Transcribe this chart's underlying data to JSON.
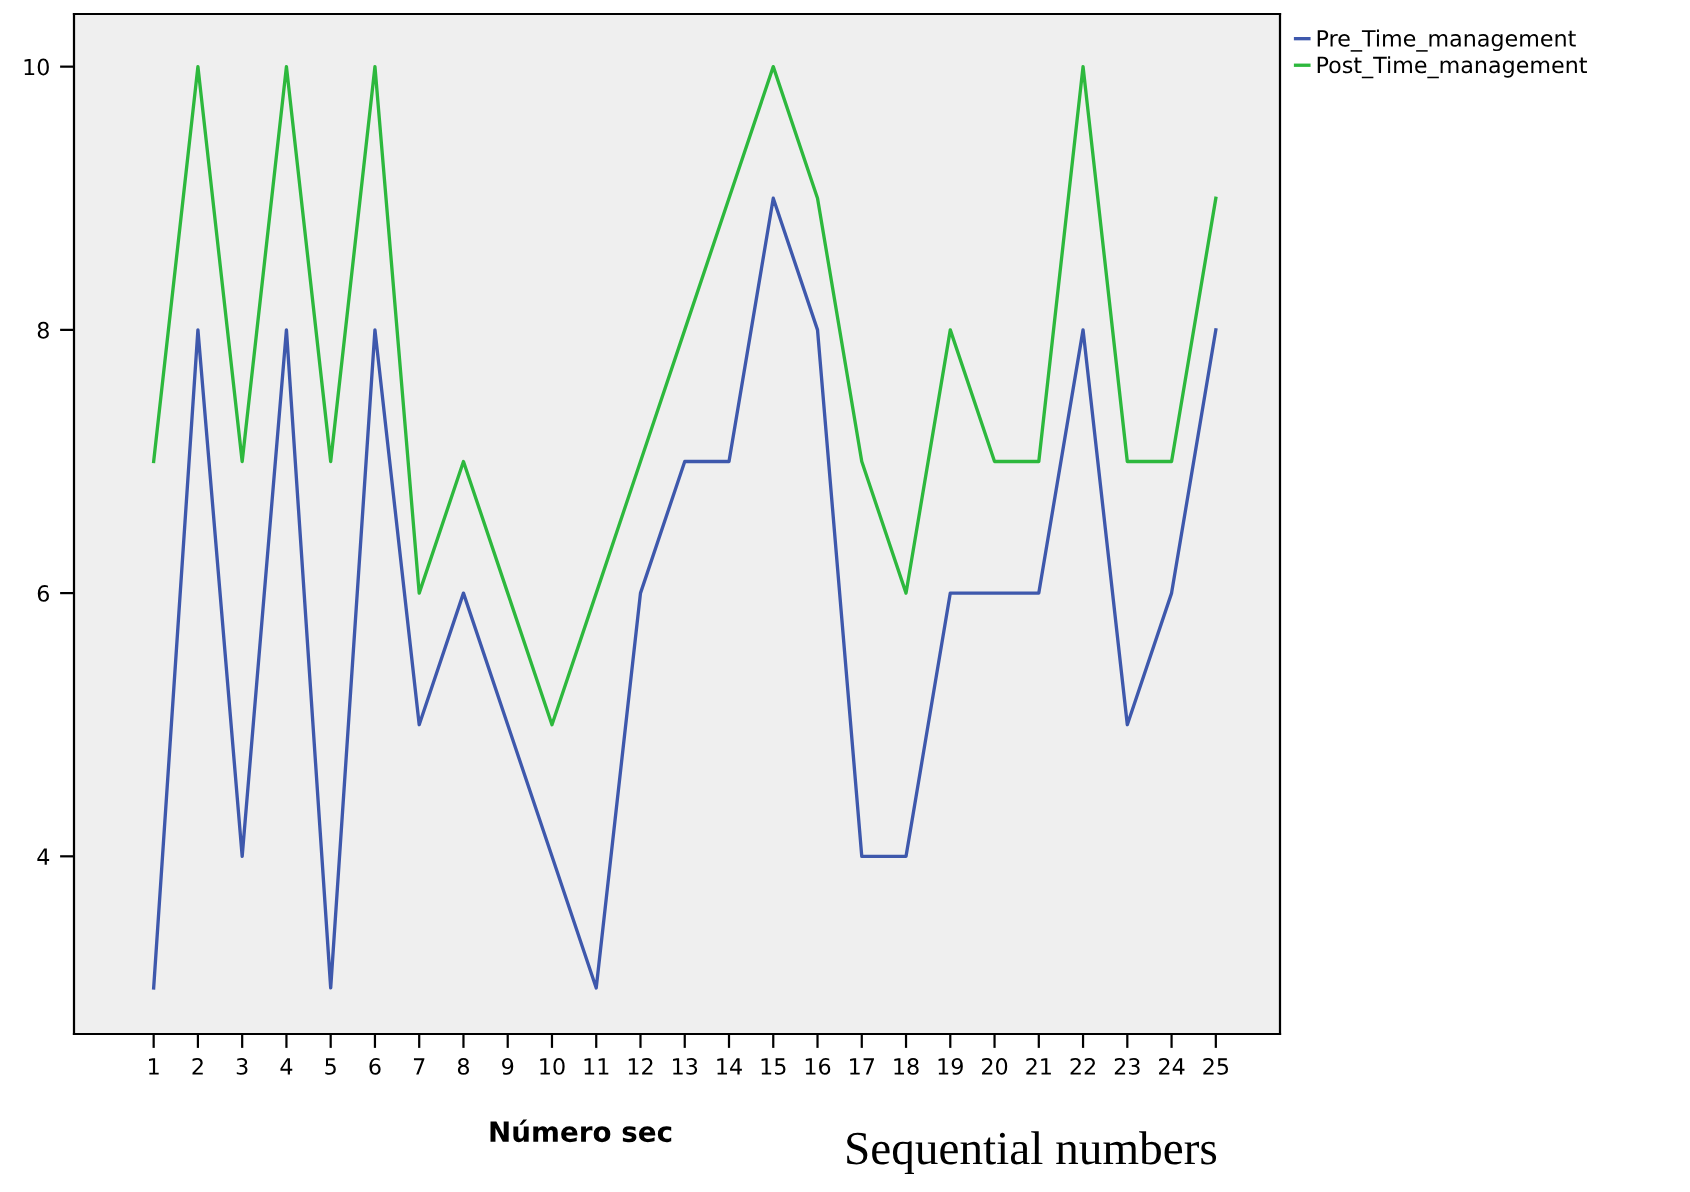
{
  "chart_data": {
    "type": "line",
    "xlabel": "Número sec",
    "categories": [
      "1",
      "2",
      "3",
      "4",
      "5",
      "6",
      "7",
      "8",
      "9",
      "10",
      "11",
      "12",
      "13",
      "14",
      "15",
      "16",
      "17",
      "18",
      "19",
      "20",
      "21",
      "22",
      "23",
      "24",
      "25"
    ],
    "series": [
      {
        "name": "Pre_Time_management",
        "color": "#3e58ac",
        "values": [
          3,
          8,
          4,
          8,
          3,
          8,
          5,
          6,
          5,
          4,
          3,
          6,
          7,
          7,
          9,
          8,
          4,
          4,
          6,
          6,
          6,
          8,
          5,
          6,
          8
        ]
      },
      {
        "name": "Post_Time_management",
        "color": "#2db83d",
        "values": [
          7,
          10,
          7,
          10,
          7,
          10,
          6,
          7,
          6,
          5,
          6,
          7,
          8,
          9,
          10,
          9,
          7,
          6,
          8,
          7,
          7,
          10,
          7,
          7,
          9
        ]
      }
    ],
    "ylim": [
      2.65,
      10.4
    ],
    "yticks": [
      4,
      6,
      8,
      10
    ],
    "grid": false,
    "legend": "top right",
    "marker": "none",
    "line_style": "solid",
    "annotations": [
      "Sequential numbers"
    ]
  }
}
